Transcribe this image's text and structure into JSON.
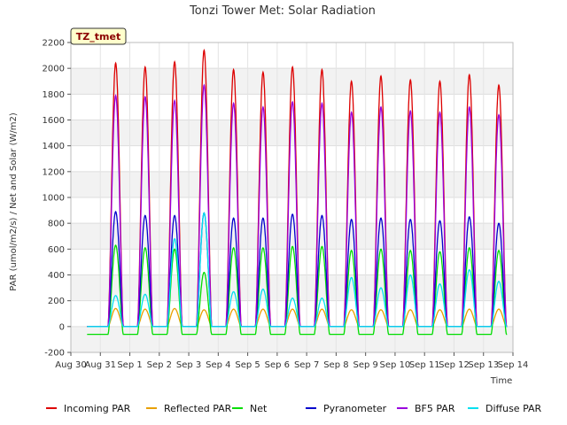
{
  "chart_data": {
    "type": "line",
    "title": "Tonzi Tower Met: Solar Radiation",
    "xlabel": "Time",
    "ylabel": "PAR (umol/m2/s) / Net and Solar (W/m2)",
    "badge": "TZ_tmet",
    "ylim": [
      -200,
      2200
    ],
    "yticks": [
      -200,
      0,
      200,
      400,
      600,
      800,
      1000,
      1200,
      1400,
      1600,
      1800,
      2000,
      2200
    ],
    "xlim": [
      0,
      15
    ],
    "xticks": [
      {
        "value": 0,
        "label": "Aug 30"
      },
      {
        "value": 1,
        "label": "Aug 31"
      },
      {
        "value": 2,
        "label": "Sep 1"
      },
      {
        "value": 3,
        "label": "Sep 2"
      },
      {
        "value": 4,
        "label": "Sep 3"
      },
      {
        "value": 5,
        "label": "Sep 4"
      },
      {
        "value": 6,
        "label": "Sep 5"
      },
      {
        "value": 7,
        "label": "Sep 6"
      },
      {
        "value": 8,
        "label": "Sep 7"
      },
      {
        "value": 9,
        "label": "Sep 8"
      },
      {
        "value": 10,
        "label": "Sep 9"
      },
      {
        "value": 11,
        "label": "Sep 10"
      },
      {
        "value": 12,
        "label": "Sep 11"
      },
      {
        "value": 13,
        "label": "Sep 12"
      },
      {
        "value": 14,
        "label": "Sep 13"
      },
      {
        "value": 15,
        "label": "Sep 14"
      }
    ],
    "grid": true,
    "legend_position": "bottom",
    "day_peaks": {
      "days": [
        1,
        2,
        3,
        4,
        5,
        6,
        7,
        8,
        9,
        10,
        11,
        12,
        13,
        14
      ],
      "series": [
        {
          "name": "Incoming PAR",
          "color": "#dd0000",
          "peaks": [
            2040,
            2010,
            2050,
            2140,
            1990,
            1970,
            2010,
            1990,
            1900,
            1940,
            1910,
            1900,
            1950,
            1870
          ],
          "night": 0
        },
        {
          "name": "Reflected PAR",
          "color": "#e8a000",
          "peaks": [
            140,
            135,
            140,
            130,
            135,
            135,
            135,
            135,
            130,
            130,
            130,
            130,
            135,
            135
          ],
          "night": 0
        },
        {
          "name": "Net",
          "color": "#00dd00",
          "peaks": [
            630,
            610,
            600,
            420,
            610,
            610,
            620,
            620,
            590,
            600,
            590,
            580,
            610,
            590
          ],
          "night": -60
        },
        {
          "name": "Pyranometer",
          "color": "#0000cc",
          "peaks": [
            890,
            860,
            860,
            880,
            840,
            840,
            870,
            860,
            830,
            840,
            830,
            820,
            850,
            800
          ],
          "night": 0
        },
        {
          "name": "BF5 PAR",
          "color": "#9900dd",
          "peaks": [
            1790,
            1780,
            1750,
            1870,
            1730,
            1700,
            1740,
            1730,
            1660,
            1700,
            1670,
            1660,
            1700,
            1640
          ],
          "night": 0
        },
        {
          "name": "Diffuse PAR",
          "color": "#00e0f0",
          "peaks": [
            240,
            250,
            680,
            880,
            270,
            290,
            220,
            220,
            380,
            300,
            400,
            330,
            440,
            350
          ],
          "night": 0
        }
      ]
    }
  }
}
